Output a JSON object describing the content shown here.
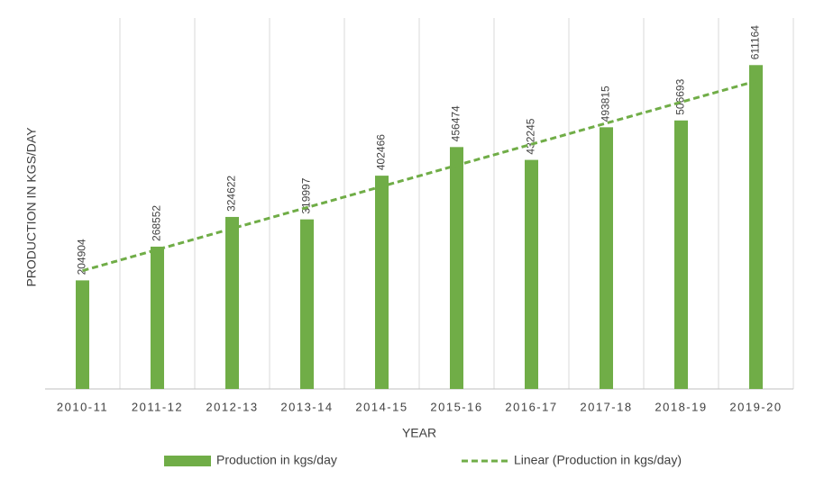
{
  "chart_data": {
    "type": "bar",
    "x_label": "YEAR",
    "y_label": "PRODUCTION IN KGS/DAY",
    "categories": [
      "2010-11",
      "2011-12",
      "2012-13",
      "2013-14",
      "2014-15",
      "2015-16",
      "2016-17",
      "2017-18",
      "2018-19",
      "2019-20"
    ],
    "series": [
      {
        "name": "Production in kgs/day",
        "type": "bar",
        "color": "#70ad47",
        "values": [
          204904,
          268552,
          324622,
          319997,
          402466,
          456474,
          432245,
          493815,
          506693,
          611164
        ]
      },
      {
        "name": "Linear (Production in kgs/day)",
        "type": "line",
        "dashed": true,
        "color": "#70ad47",
        "values": [
          223182,
          262940,
          302698,
          342456,
          382214,
          421972,
          461730,
          501488,
          541246,
          581004
        ]
      }
    ],
    "ylim": [
      0,
      700000
    ],
    "grid": true
  }
}
